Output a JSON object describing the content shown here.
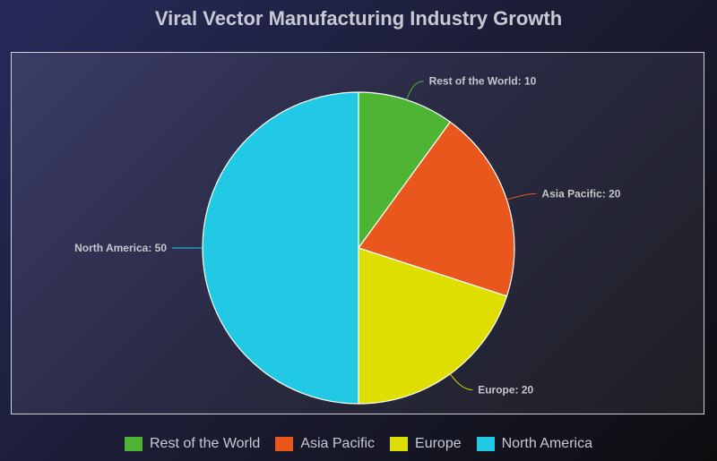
{
  "chart_data": {
    "type": "pie",
    "title": "Viral Vector Manufacturing Industry Growth",
    "slices": [
      {
        "label": "Rest of the World",
        "value": 10,
        "color": "#4db533",
        "display": "Rest of the World: 10"
      },
      {
        "label": "Asia Pacific",
        "value": 20,
        "color": "#ea571c",
        "display": "Asia Pacific: 20"
      },
      {
        "label": "Europe",
        "value": 20,
        "color": "#dede00",
        "display": "Europe: 20"
      },
      {
        "label": "North America",
        "value": 50,
        "color": "#22c9e4",
        "display": "North America: 50"
      }
    ],
    "legend_position": "bottom",
    "start_angle": "top, clockwise"
  }
}
